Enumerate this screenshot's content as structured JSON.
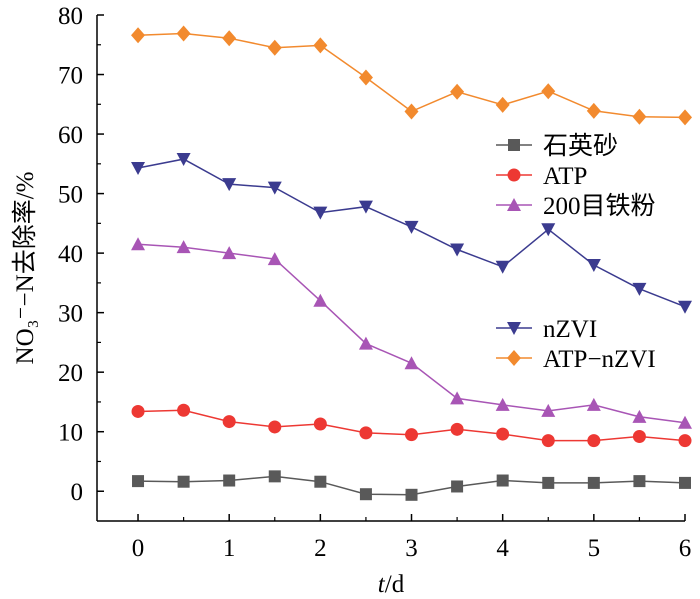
{
  "chart_data": {
    "type": "line",
    "xlabel_italic": "t",
    "xlabel_rest": "/d",
    "ylabel": "NO₃⁻−N去除率/%",
    "xlim": [
      -0.45,
      6
    ],
    "ylim": [
      -5,
      80
    ],
    "x_ticks": [
      0,
      1,
      2,
      3,
      4,
      5,
      6
    ],
    "y_ticks": [
      0,
      10,
      20,
      30,
      40,
      50,
      60,
      70,
      80
    ],
    "grid": false,
    "legend_groups": [
      {
        "position": "center-right",
        "series_indices": [
          0,
          1,
          2
        ]
      },
      {
        "position": "right",
        "series_indices": [
          3,
          4
        ]
      }
    ],
    "x": [
      0,
      0.5,
      1,
      1.5,
      2,
      2.5,
      3,
      3.5,
      4,
      4.5,
      5,
      5.5,
      6
    ],
    "series": [
      {
        "name": "石英砂",
        "color": "#595959",
        "marker": "square",
        "values": [
          1.7,
          1.6,
          1.8,
          2.5,
          1.6,
          -0.5,
          -0.6,
          0.8,
          1.8,
          1.4,
          1.4,
          1.7,
          1.4
        ]
      },
      {
        "name": "ATP",
        "color": "#ed3833",
        "marker": "circle",
        "values": [
          13.4,
          13.6,
          11.7,
          10.8,
          11.3,
          9.8,
          9.5,
          10.4,
          9.6,
          8.5,
          8.5,
          9.2,
          8.5
        ]
      },
      {
        "name": "200目铁粉",
        "color": "#a855b5",
        "marker": "triangle-up",
        "values": [
          41.5,
          41.0,
          40.0,
          39.0,
          32.0,
          24.8,
          21.5,
          15.6,
          14.5,
          13.5,
          14.5,
          12.5,
          11.5
        ]
      },
      {
        "name": "nZVI",
        "color": "#3b3b8f",
        "marker": "triangle-down",
        "values": [
          54.3,
          55.8,
          51.6,
          51.0,
          46.8,
          47.8,
          44.4,
          40.6,
          37.7,
          44.0,
          38.0,
          34.0,
          31.0
        ]
      },
      {
        "name": "ATP−nZVI",
        "color": "#f28a2e",
        "marker": "diamond",
        "values": [
          76.6,
          76.9,
          76.1,
          74.5,
          74.9,
          69.5,
          63.8,
          67.1,
          64.9,
          67.2,
          63.9,
          62.9,
          62.8
        ]
      }
    ]
  }
}
